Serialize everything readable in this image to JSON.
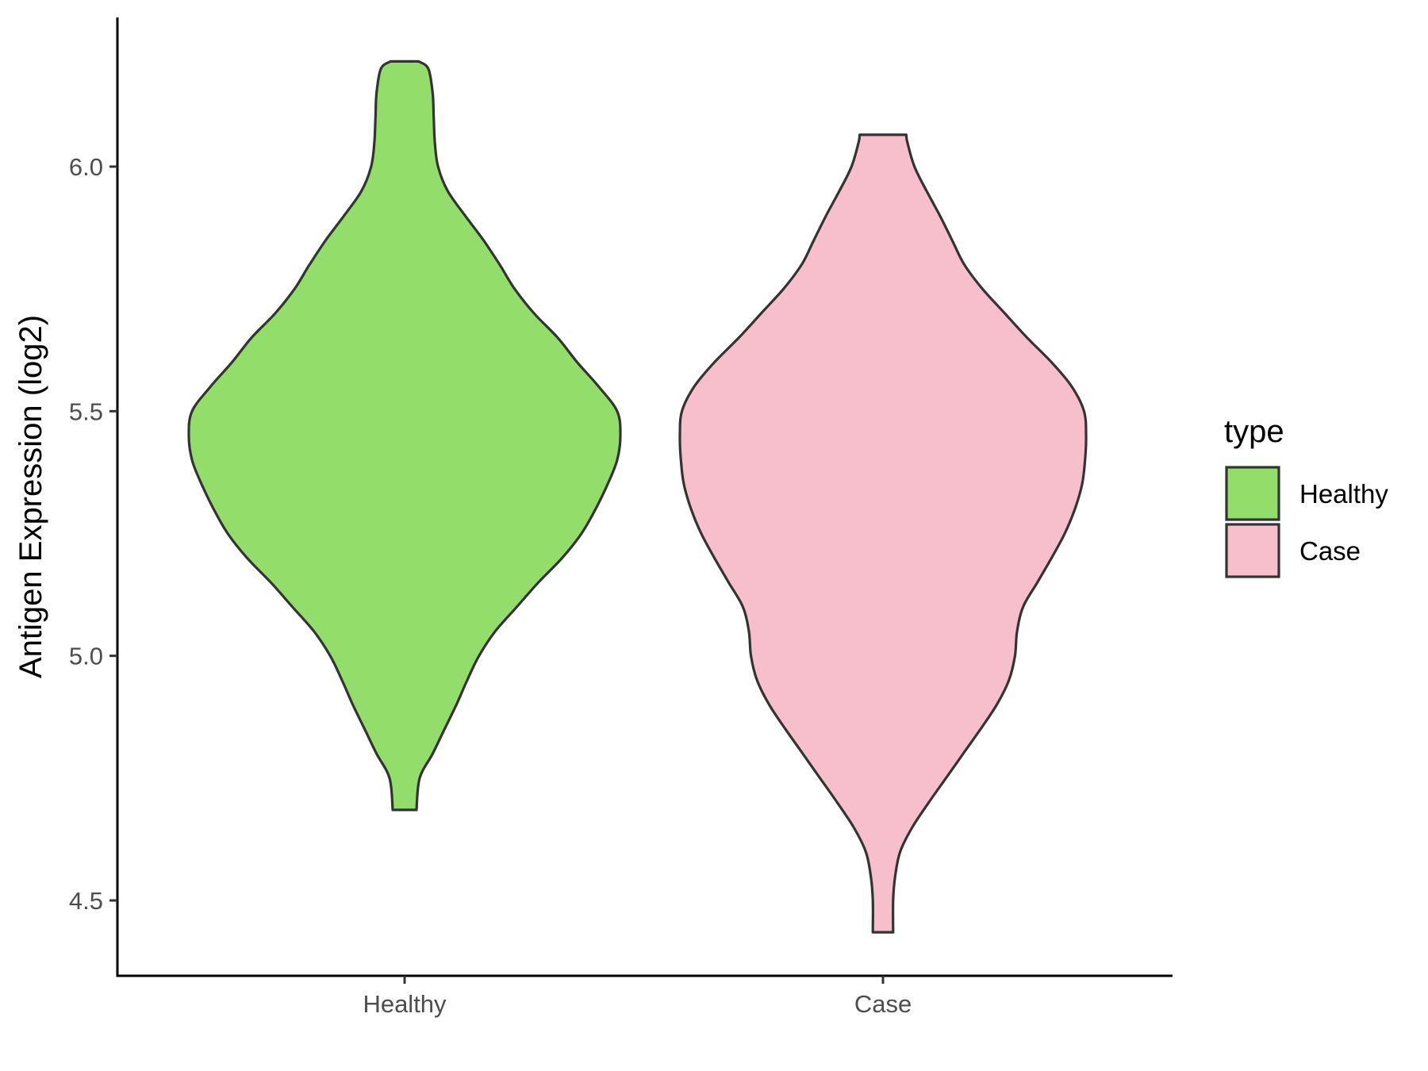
{
  "chart_data": {
    "type": "violin",
    "ylabel": "Antigen Expression (log2)",
    "xlabel": "",
    "ylim": [
      4.35,
      6.32
    ],
    "y_ticks": [
      4.5,
      5.0,
      5.5,
      6.0
    ],
    "y_tick_labels": [
      "4.5",
      "5.0",
      "5.5",
      "6.0"
    ],
    "categories": [
      "Healthy",
      "Case"
    ],
    "legend": {
      "title": "type",
      "position": "right",
      "entries": [
        {
          "label": "Healthy",
          "color": "#93dd6a"
        },
        {
          "label": "Case",
          "color": "#f7bfcb"
        }
      ]
    },
    "grid": false,
    "series": [
      {
        "name": "Healthy",
        "color": "#93dd6a",
        "min": 4.685,
        "max": 6.215,
        "profile": [
          [
            4.685,
            0.055
          ],
          [
            4.75,
            0.07
          ],
          [
            4.8,
            0.13
          ],
          [
            4.85,
            0.185
          ],
          [
            4.9,
            0.24
          ],
          [
            4.95,
            0.29
          ],
          [
            5.0,
            0.345
          ],
          [
            5.05,
            0.42
          ],
          [
            5.1,
            0.52
          ],
          [
            5.15,
            0.62
          ],
          [
            5.2,
            0.73
          ],
          [
            5.25,
            0.82
          ],
          [
            5.3,
            0.885
          ],
          [
            5.35,
            0.94
          ],
          [
            5.4,
            0.985
          ],
          [
            5.45,
            1.0
          ],
          [
            5.5,
            0.985
          ],
          [
            5.55,
            0.9
          ],
          [
            5.6,
            0.8
          ],
          [
            5.65,
            0.71
          ],
          [
            5.7,
            0.6
          ],
          [
            5.75,
            0.51
          ],
          [
            5.8,
            0.44
          ],
          [
            5.85,
            0.365
          ],
          [
            5.9,
            0.28
          ],
          [
            5.95,
            0.2
          ],
          [
            6.0,
            0.155
          ],
          [
            6.05,
            0.14
          ],
          [
            6.1,
            0.135
          ],
          [
            6.15,
            0.13
          ],
          [
            6.2,
            0.11
          ],
          [
            6.215,
            0.065
          ]
        ]
      },
      {
        "name": "Case",
        "color": "#f7bfcb",
        "min": 4.435,
        "max": 6.065,
        "profile": [
          [
            4.435,
            0.05
          ],
          [
            4.5,
            0.05
          ],
          [
            4.55,
            0.06
          ],
          [
            4.6,
            0.085
          ],
          [
            4.65,
            0.145
          ],
          [
            4.7,
            0.225
          ],
          [
            4.75,
            0.31
          ],
          [
            4.8,
            0.395
          ],
          [
            4.85,
            0.48
          ],
          [
            4.9,
            0.56
          ],
          [
            4.95,
            0.62
          ],
          [
            5.0,
            0.65
          ],
          [
            5.05,
            0.66
          ],
          [
            5.1,
            0.69
          ],
          [
            5.15,
            0.76
          ],
          [
            5.2,
            0.83
          ],
          [
            5.25,
            0.895
          ],
          [
            5.3,
            0.945
          ],
          [
            5.35,
            0.98
          ],
          [
            5.4,
            0.995
          ],
          [
            5.45,
            1.0
          ],
          [
            5.5,
            0.99
          ],
          [
            5.55,
            0.93
          ],
          [
            5.6,
            0.83
          ],
          [
            5.65,
            0.71
          ],
          [
            5.7,
            0.6
          ],
          [
            5.75,
            0.49
          ],
          [
            5.8,
            0.4
          ],
          [
            5.85,
            0.34
          ],
          [
            5.9,
            0.28
          ],
          [
            5.95,
            0.215
          ],
          [
            6.0,
            0.155
          ],
          [
            6.05,
            0.12
          ],
          [
            6.065,
            0.115
          ]
        ]
      }
    ]
  }
}
